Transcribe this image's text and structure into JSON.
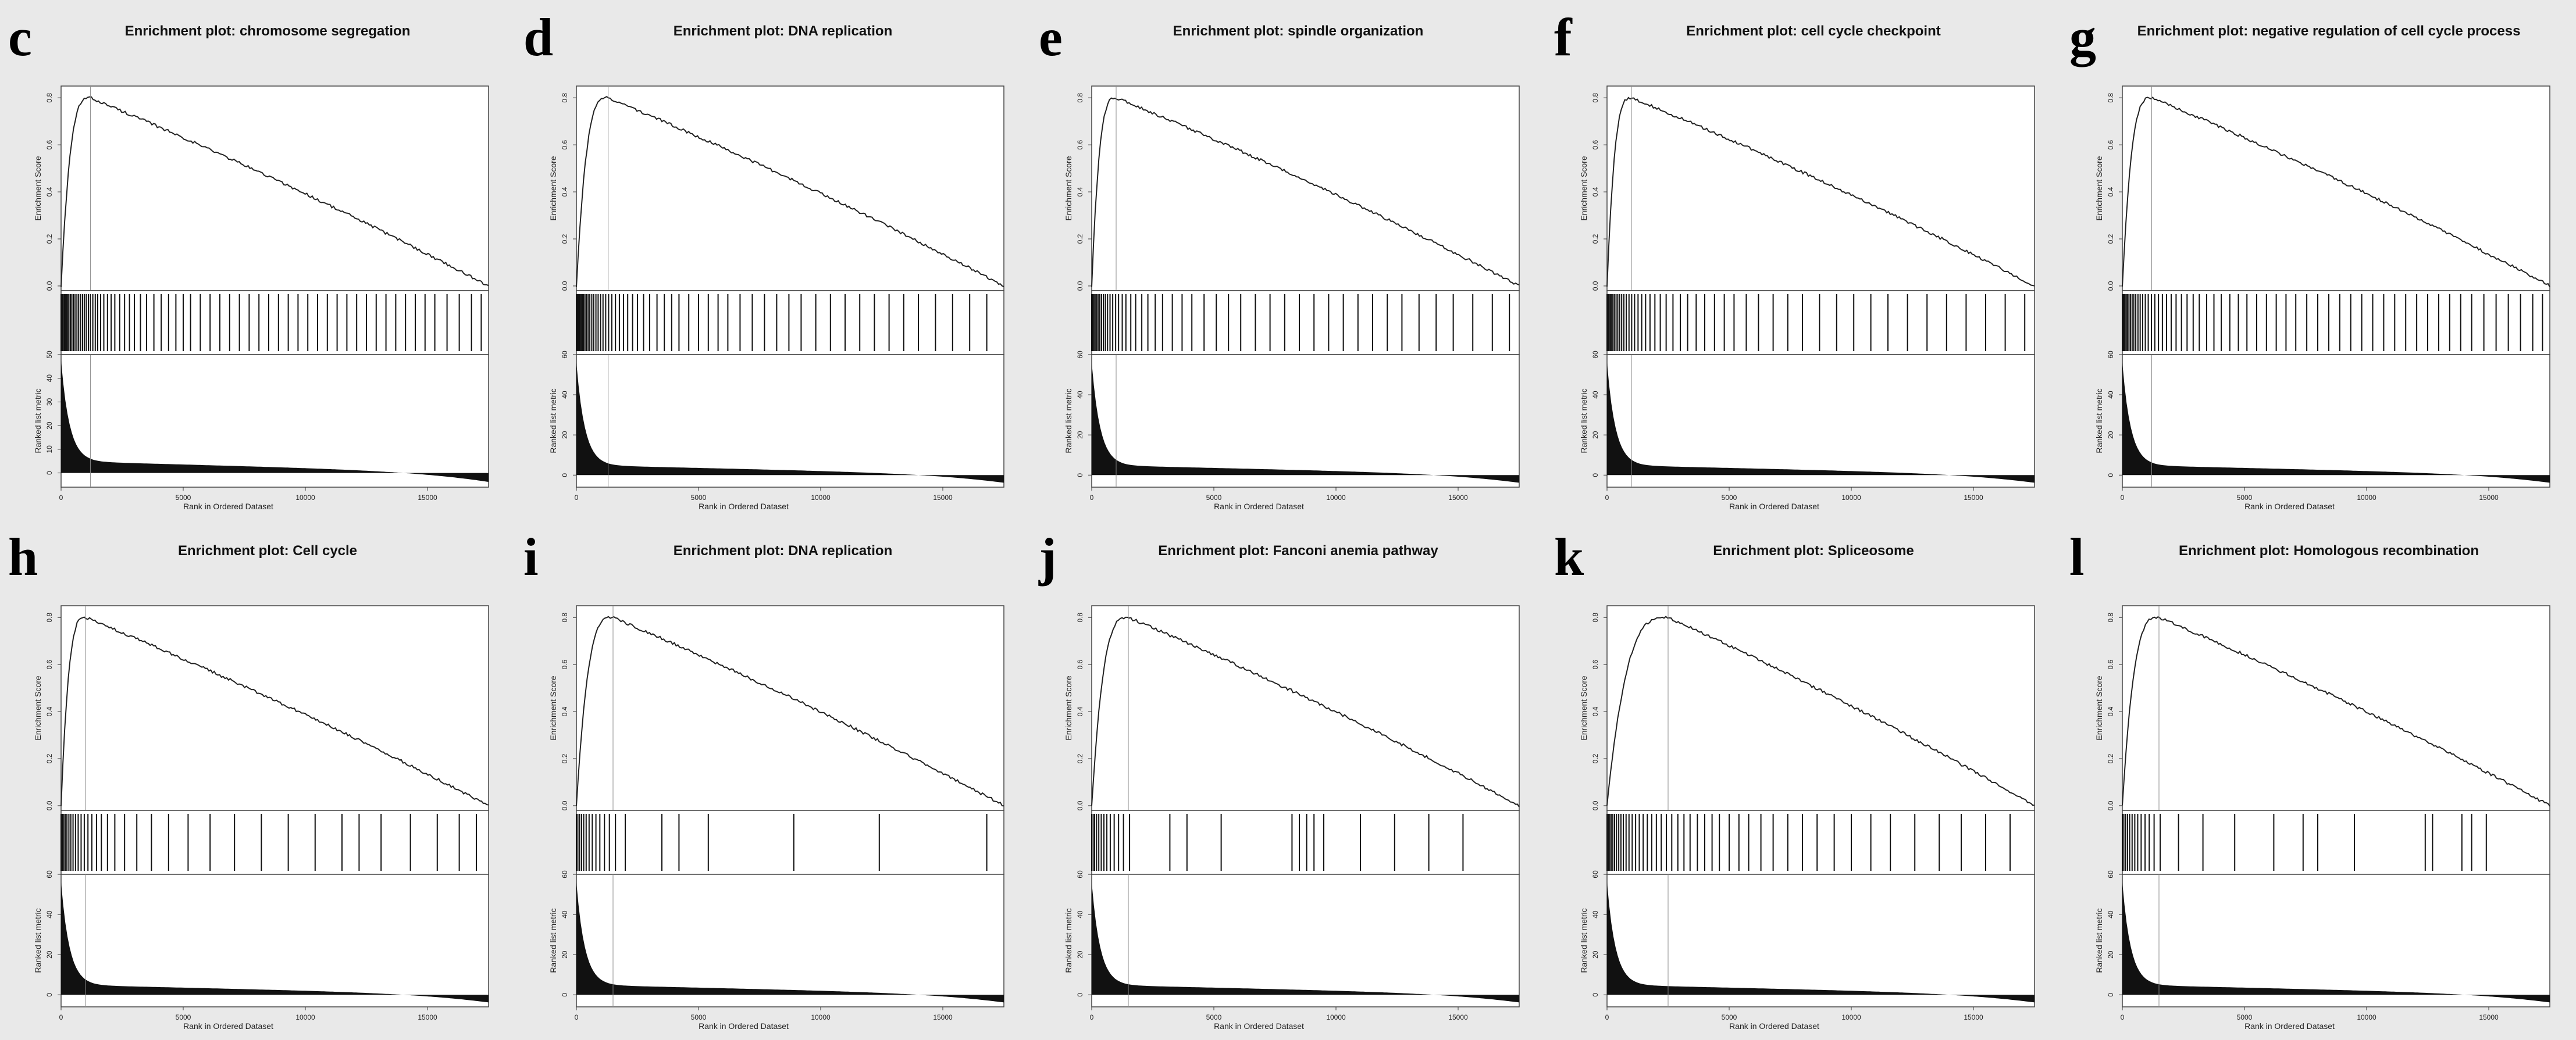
{
  "labels": {
    "es_axis": "Enrichment Score",
    "metric_axis": "Ranked list metric",
    "rank_axis": "Rank in Ordered Dataset"
  },
  "chart_data": [
    {
      "type": "line",
      "letter": "c",
      "title": "Enrichment plot: chromosome segregation",
      "peak_rank": 1200,
      "peak_es": 0.8,
      "es_end": 0.0,
      "es_yticks": [
        0.0,
        0.2,
        0.4,
        0.6,
        0.8
      ],
      "metric_yticks": [
        0,
        10,
        20,
        30,
        40,
        50
      ],
      "x_ticks": [
        0,
        5000,
        10000,
        15000
      ],
      "x_max": 17500,
      "hits": [
        0,
        40,
        80,
        130,
        170,
        220,
        270,
        320,
        380,
        440,
        500,
        570,
        650,
        720,
        800,
        880,
        950,
        1030,
        1120,
        1200,
        1300,
        1400,
        1500,
        1620,
        1750,
        1900,
        2050,
        2200,
        2400,
        2600,
        2800,
        3000,
        3250,
        3500,
        3800,
        4100,
        4400,
        4700,
        5000,
        5300,
        5700,
        6100,
        6500,
        6900,
        7300,
        7700,
        8100,
        8500,
        8900,
        9300,
        9700,
        10100,
        10500,
        10900,
        11300,
        11700,
        12100,
        12500,
        12900,
        13300,
        13700,
        14100,
        14500,
        14900,
        15300,
        15800,
        16300,
        16800,
        17200
      ]
    },
    {
      "type": "line",
      "letter": "d",
      "title": "Enrichment plot: DNA replication",
      "peak_rank": 1300,
      "peak_es": 0.8,
      "es_end": 0.0,
      "es_yticks": [
        0.0,
        0.2,
        0.4,
        0.6,
        0.8
      ],
      "metric_yticks": [
        0,
        20,
        40,
        60
      ],
      "x_ticks": [
        0,
        5000,
        10000,
        15000
      ],
      "x_max": 17500,
      "hits": [
        0,
        30,
        60,
        100,
        140,
        190,
        240,
        290,
        350,
        410,
        480,
        550,
        630,
        710,
        800,
        890,
        990,
        1090,
        1200,
        1320,
        1450,
        1600,
        1760,
        1930,
        2100,
        2300,
        2500,
        2750,
        3000,
        3300,
        3600,
        3900,
        4200,
        4600,
        5000,
        5400,
        5800,
        6200,
        6700,
        7200,
        7700,
        8200,
        8700,
        9200,
        9800,
        10400,
        11000,
        11600,
        12200,
        12800,
        13400,
        14000,
        14700,
        15400,
        16100,
        16800
      ]
    },
    {
      "type": "line",
      "letter": "e",
      "title": "Enrichment plot: spindle organization",
      "peak_rank": 1000,
      "peak_es": 0.8,
      "es_end": 0.0,
      "es_yticks": [
        0.0,
        0.2,
        0.4,
        0.6,
        0.8
      ],
      "metric_yticks": [
        0,
        20,
        40,
        60
      ],
      "x_ticks": [
        0,
        5000,
        10000,
        15000
      ],
      "x_max": 17500,
      "hits": [
        0,
        40,
        90,
        140,
        200,
        260,
        330,
        400,
        480,
        560,
        650,
        750,
        860,
        980,
        1100,
        1250,
        1400,
        1600,
        1800,
        2050,
        2300,
        2600,
        2900,
        3300,
        3700,
        4100,
        4600,
        5100,
        5600,
        6100,
        6700,
        7300,
        7900,
        8500,
        9100,
        9700,
        10300,
        10900,
        11500,
        12100,
        12700,
        13400,
        14100,
        14800,
        15600,
        16400,
        17100
      ]
    },
    {
      "type": "line",
      "letter": "f",
      "title": "Enrichment plot: cell cycle checkpoint",
      "peak_rank": 1000,
      "peak_es": 0.8,
      "es_end": 0.0,
      "es_yticks": [
        0.0,
        0.2,
        0.4,
        0.6,
        0.8
      ],
      "metric_yticks": [
        0,
        20,
        40,
        60
      ],
      "x_ticks": [
        0,
        5000,
        10000,
        15000
      ],
      "x_max": 17500,
      "hits": [
        0,
        40,
        80,
        130,
        180,
        240,
        300,
        370,
        440,
        520,
        600,
        690,
        790,
        900,
        1010,
        1130,
        1270,
        1420,
        1580,
        1760,
        1960,
        2180,
        2420,
        2700,
        3000,
        3300,
        3650,
        4000,
        4400,
        4800,
        5200,
        5700,
        6200,
        6800,
        7400,
        8000,
        8700,
        9400,
        10100,
        10800,
        11500,
        12300,
        13100,
        13900,
        14700,
        15500,
        16300,
        17100
      ]
    },
    {
      "type": "line",
      "letter": "g",
      "title": "Enrichment plot: negative regulation of cell cycle process",
      "peak_rank": 1200,
      "peak_es": 0.8,
      "es_end": 0.0,
      "es_yticks": [
        0.0,
        0.2,
        0.4,
        0.6,
        0.8
      ],
      "metric_yticks": [
        0,
        20,
        40,
        60
      ],
      "x_ticks": [
        0,
        5000,
        10000,
        15000
      ],
      "x_max": 17500,
      "hits": [
        0,
        30,
        70,
        110,
        160,
        210,
        270,
        330,
        400,
        470,
        550,
        640,
        730,
        830,
        940,
        1060,
        1190,
        1330,
        1480,
        1640,
        1810,
        2000,
        2200,
        2420,
        2650,
        2900,
        3150,
        3450,
        3750,
        4050,
        4400,
        4750,
        5100,
        5500,
        5900,
        6300,
        6700,
        7100,
        7550,
        8000,
        8450,
        8900,
        9350,
        9800,
        10250,
        10700,
        11150,
        11600,
        12050,
        12500,
        12950,
        13400,
        13850,
        14300,
        14800,
        15300,
        15800,
        16300,
        16800,
        17200
      ]
    },
    {
      "type": "line",
      "letter": "h",
      "title": "Enrichment plot: Cell cycle",
      "peak_rank": 1000,
      "peak_es": 0.8,
      "es_end": 0.0,
      "es_yticks": [
        0.0,
        0.2,
        0.4,
        0.6,
        0.8
      ],
      "metric_yticks": [
        0,
        20,
        40,
        60
      ],
      "x_ticks": [
        0,
        5000,
        10000,
        15000
      ],
      "x_max": 17500,
      "hits": [
        0,
        50,
        110,
        170,
        240,
        320,
        400,
        490,
        590,
        700,
        820,
        950,
        1100,
        1260,
        1450,
        1650,
        1900,
        2200,
        2600,
        3100,
        3700,
        4400,
        5200,
        6100,
        7100,
        8200,
        9300,
        10400,
        11500,
        12200,
        13100,
        14300,
        15400,
        16300,
        17000
      ]
    },
    {
      "type": "line",
      "letter": "i",
      "title": "Enrichment plot: DNA replication",
      "peak_rank": 1500,
      "peak_es": 0.8,
      "es_end": 0.0,
      "es_yticks": [
        0.0,
        0.2,
        0.4,
        0.6,
        0.8
      ],
      "metric_yticks": [
        0,
        20,
        40,
        60
      ],
      "x_ticks": [
        0,
        5000,
        10000,
        15000
      ],
      "x_max": 17500,
      "hits": [
        0,
        60,
        130,
        210,
        300,
        400,
        520,
        650,
        800,
        960,
        1150,
        1350,
        1600,
        2000,
        3500,
        4200,
        5400,
        8900,
        12400,
        16800
      ]
    },
    {
      "type": "line",
      "letter": "j",
      "title": "Enrichment plot: Fanconi anemia pathway",
      "peak_rank": 1500,
      "peak_es": 0.8,
      "es_end": 0.0,
      "es_yticks": [
        0.0,
        0.2,
        0.4,
        0.6,
        0.8
      ],
      "metric_yticks": [
        0,
        20,
        40,
        60
      ],
      "x_ticks": [
        0,
        5000,
        10000,
        15000
      ],
      "x_max": 17500,
      "hits": [
        0,
        60,
        120,
        200,
        290,
        390,
        500,
        620,
        760,
        920,
        1100,
        1300,
        1550,
        3200,
        3900,
        5300,
        8200,
        8500,
        8800,
        9100,
        9500,
        11000,
        12400,
        13800,
        15200
      ]
    },
    {
      "type": "line",
      "letter": "k",
      "title": "Enrichment plot: Spliceosome",
      "peak_rank": 2500,
      "peak_es": 0.8,
      "es_end": 0.0,
      "es_yticks": [
        0.0,
        0.2,
        0.4,
        0.6,
        0.8
      ],
      "metric_yticks": [
        0,
        20,
        40,
        60
      ],
      "x_ticks": [
        0,
        5000,
        10000,
        15000
      ],
      "x_max": 17500,
      "hits": [
        0,
        50,
        110,
        170,
        240,
        310,
        390,
        480,
        570,
        670,
        780,
        900,
        1030,
        1170,
        1320,
        1480,
        1650,
        1830,
        2020,
        2220,
        2430,
        2650,
        2900,
        3150,
        3400,
        3700,
        4000,
        4300,
        4600,
        5000,
        5400,
        5800,
        6300,
        6800,
        7400,
        8000,
        8600,
        9300,
        10000,
        10800,
        11600,
        12600,
        13600,
        14500,
        15500,
        16500
      ]
    },
    {
      "type": "line",
      "letter": "l",
      "title": "Enrichment plot: Homologous recombination",
      "peak_rank": 1500,
      "peak_es": 0.8,
      "es_end": 0.0,
      "es_yticks": [
        0.0,
        0.2,
        0.4,
        0.6,
        0.8
      ],
      "metric_yticks": [
        0,
        20,
        40,
        60
      ],
      "x_ticks": [
        0,
        5000,
        10000,
        15000
      ],
      "x_max": 17500,
      "hits": [
        0,
        60,
        130,
        210,
        300,
        400,
        510,
        630,
        770,
        930,
        1100,
        1300,
        1550,
        2300,
        3300,
        4600,
        6200,
        7400,
        8000,
        9500,
        12400,
        12700,
        13900,
        14300,
        14900
      ]
    }
  ]
}
